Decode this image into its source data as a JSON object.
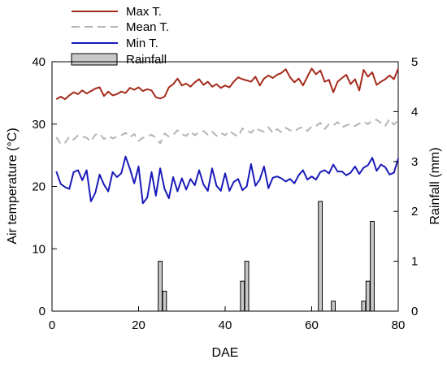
{
  "chart_data": {
    "type": "line",
    "xlabel": "DAE",
    "ylabel": "Air temperature (°C)",
    "y2label": "Rainfall (mm)",
    "xlim": [
      0,
      80
    ],
    "ylim": [
      0,
      40
    ],
    "y2lim": [
      0,
      5
    ],
    "xticks": [
      0,
      20,
      40,
      60,
      80
    ],
    "yticks": [
      0,
      10,
      20,
      30,
      40
    ],
    "y2ticks": [
      0,
      1,
      2,
      3,
      4,
      5
    ],
    "grid": false,
    "legend": "top-left, above plot",
    "x": [
      1,
      2,
      3,
      4,
      5,
      6,
      7,
      8,
      9,
      10,
      11,
      12,
      13,
      14,
      15,
      16,
      17,
      18,
      19,
      20,
      21,
      22,
      23,
      24,
      25,
      26,
      27,
      28,
      29,
      30,
      31,
      32,
      33,
      34,
      35,
      36,
      37,
      38,
      39,
      40,
      41,
      42,
      43,
      44,
      45,
      46,
      47,
      48,
      49,
      50,
      51,
      52,
      53,
      54,
      55,
      56,
      57,
      58,
      59,
      60,
      61,
      62,
      63,
      64,
      65,
      66,
      67,
      68,
      69,
      70,
      71,
      72,
      73,
      74,
      75,
      76,
      77,
      78,
      79,
      80
    ],
    "series": [
      {
        "name": "Max T.",
        "kind": "line",
        "axis": "left",
        "color": "#a52a1a",
        "dash": "solid",
        "values": [
          34.0,
          34.4,
          34.0,
          34.6,
          35.1,
          34.8,
          35.4,
          34.9,
          35.3,
          35.7,
          35.9,
          34.5,
          35.2,
          34.6,
          34.8,
          35.2,
          35.0,
          35.8,
          35.5,
          35.9,
          35.3,
          35.6,
          35.4,
          34.3,
          34.1,
          34.4,
          35.9,
          36.4,
          37.3,
          36.2,
          36.5,
          36.0,
          36.7,
          37.2,
          36.3,
          36.8,
          36.0,
          36.4,
          35.8,
          36.2,
          35.9,
          36.8,
          37.5,
          37.2,
          37.0,
          36.8,
          37.6,
          36.2,
          37.3,
          37.8,
          37.4,
          37.9,
          38.2,
          38.8,
          37.5,
          36.7,
          37.3,
          36.2,
          37.6,
          38.9,
          38.0,
          38.6,
          36.8,
          37.1,
          35.1,
          36.8,
          37.4,
          37.9,
          36.4,
          37.2,
          35.4,
          38.7,
          37.6,
          38.3,
          36.3,
          36.8,
          37.2,
          37.8,
          37.2,
          38.9
        ]
      },
      {
        "name": "Mean T.",
        "kind": "line",
        "axis": "left",
        "color": "#b4b4b4",
        "dash": "dashed",
        "values": [
          27.9,
          26.8,
          27.0,
          28.0,
          27.5,
          28.2,
          28.0,
          27.8,
          27.2,
          28.3,
          28.5,
          27.6,
          28.1,
          27.7,
          28.0,
          28.2,
          28.6,
          27.9,
          28.4,
          27.3,
          27.8,
          28.0,
          28.3,
          27.8,
          26.9,
          28.5,
          28.0,
          28.3,
          29.0,
          28.4,
          28.1,
          28.8,
          28.2,
          28.7,
          28.9,
          28.3,
          28.8,
          28.1,
          28.6,
          28.2,
          28.9,
          28.4,
          28.0,
          29.3,
          29.0,
          28.6,
          29.4,
          29.0,
          28.8,
          29.5,
          28.6,
          29.2,
          28.7,
          29.4,
          29.0,
          28.8,
          29.3,
          29.5,
          28.9,
          29.6,
          29.7,
          30.2,
          29.2,
          30.0,
          29.8,
          30.3,
          29.5,
          29.8,
          30.0,
          29.7,
          30.1,
          30.4,
          30.0,
          30.6,
          30.7,
          30.2,
          29.7,
          30.8,
          29.9,
          30.7
        ]
      },
      {
        "name": "Min T.",
        "kind": "line",
        "axis": "left",
        "color": "#1a1aba",
        "dash": "solid",
        "values": [
          22.4,
          20.4,
          19.9,
          19.6,
          22.3,
          22.6,
          21.0,
          22.6,
          17.6,
          19.0,
          21.9,
          20.3,
          19.2,
          22.3,
          21.5,
          22.1,
          24.8,
          22.8,
          20.5,
          23.2,
          17.3,
          18.2,
          22.3,
          18.5,
          22.9,
          19.6,
          18.1,
          21.5,
          19.2,
          21.3,
          19.5,
          21.2,
          20.2,
          22.6,
          20.3,
          19.3,
          22.9,
          20.1,
          19.3,
          22.1,
          19.3,
          20.7,
          21.2,
          19.4,
          20.0,
          23.6,
          20.1,
          21.1,
          23.2,
          19.7,
          21.4,
          21.6,
          21.3,
          20.8,
          21.2,
          20.5,
          21.8,
          22.6,
          21.1,
          21.6,
          21.1,
          22.3,
          22.6,
          22.1,
          23.5,
          22.4,
          22.4,
          21.8,
          22.2,
          23.2,
          22.0,
          23.0,
          23.4,
          24.6,
          22.5,
          23.5,
          23.1,
          21.9,
          22.2,
          24.5
        ]
      },
      {
        "name": "Rainfall",
        "kind": "bar",
        "axis": "right",
        "color": "#c8c8c8",
        "points": [
          {
            "x": 25,
            "y": 1.0
          },
          {
            "x": 26,
            "y": 0.4
          },
          {
            "x": 44,
            "y": 0.6
          },
          {
            "x": 45,
            "y": 1.0
          },
          {
            "x": 62,
            "y": 2.2
          },
          {
            "x": 65,
            "y": 0.2
          },
          {
            "x": 72,
            "y": 0.2
          },
          {
            "x": 73,
            "y": 0.6
          },
          {
            "x": 74,
            "y": 1.8
          }
        ]
      }
    ]
  }
}
